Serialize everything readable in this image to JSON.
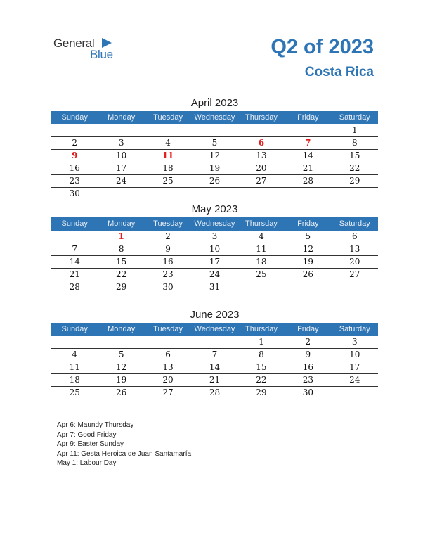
{
  "logo": {
    "general": "General",
    "blue": "Blue"
  },
  "header": {
    "quarter": "Q2 of 2023",
    "country": "Costa Rica"
  },
  "weekdays": [
    "Sunday",
    "Monday",
    "Tuesday",
    "Wednesday",
    "Thursday",
    "Friday",
    "Saturday"
  ],
  "months": [
    {
      "title": "April 2023",
      "weeks": [
        [
          "",
          "",
          "",
          "",
          "",
          "",
          "1"
        ],
        [
          "2",
          "3",
          "4",
          "5",
          "6",
          "7",
          "8"
        ],
        [
          "9",
          "10",
          "11",
          "12",
          "13",
          "14",
          "15"
        ],
        [
          "16",
          "17",
          "18",
          "19",
          "20",
          "21",
          "22"
        ],
        [
          "23",
          "24",
          "25",
          "26",
          "27",
          "28",
          "29"
        ],
        [
          "30",
          "",
          "",
          "",
          "",
          "",
          ""
        ]
      ],
      "holidays": [
        "6",
        "7",
        "9",
        "11"
      ]
    },
    {
      "title": "May 2023",
      "weeks": [
        [
          "",
          "1",
          "2",
          "3",
          "4",
          "5",
          "6"
        ],
        [
          "7",
          "8",
          "9",
          "10",
          "11",
          "12",
          "13"
        ],
        [
          "14",
          "15",
          "16",
          "17",
          "18",
          "19",
          "20"
        ],
        [
          "21",
          "22",
          "23",
          "24",
          "25",
          "26",
          "27"
        ],
        [
          "28",
          "29",
          "30",
          "31",
          "",
          "",
          ""
        ]
      ],
      "holidays": [
        "1"
      ]
    },
    {
      "title": "June 2023",
      "weeks": [
        [
          "",
          "",
          "",
          "",
          "1",
          "2",
          "3"
        ],
        [
          "4",
          "5",
          "6",
          "7",
          "8",
          "9",
          "10"
        ],
        [
          "11",
          "12",
          "13",
          "14",
          "15",
          "16",
          "17"
        ],
        [
          "18",
          "19",
          "20",
          "21",
          "22",
          "23",
          "24"
        ],
        [
          "25",
          "26",
          "27",
          "28",
          "29",
          "30",
          ""
        ]
      ],
      "holidays": []
    }
  ],
  "holiday_notes": [
    "Apr 6: Maundy Thursday",
    "Apr 7: Good Friday",
    "Apr 9: Easter Sunday",
    "Apr 11: Gesta Heroica de Juan Santamaría",
    "May 1: Labour Day"
  ],
  "colors": {
    "accent": "#2e75b6",
    "holiday": "#e21c1c",
    "header_text": "#e8eef6"
  }
}
